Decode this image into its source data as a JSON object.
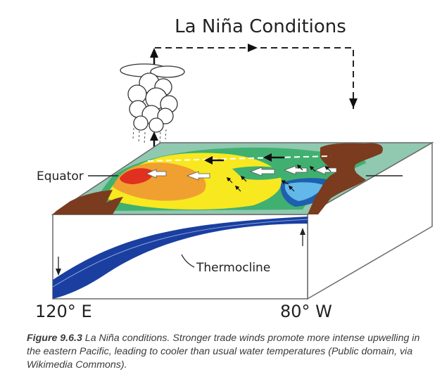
{
  "diagram": {
    "title": "La Niña Conditions",
    "labels": {
      "equator": "Equator",
      "thermocline": "Thermocline",
      "west_longitude": "120° E",
      "east_longitude": "80° W"
    }
  },
  "caption": {
    "figure_label": "Figure 9.6.3",
    "text": " La Niña conditions. Stronger trade winds promote more intense upwelling in the eastern Pacific, leading to cooler than usual water temperatures (Public domain, via Wikimedia Commons)."
  },
  "colors": {
    "warm_red": "#e03020",
    "warm_orange": "#f0a030",
    "warm_yellow": "#f8e820",
    "cool_green": "#40b070",
    "cool_teal": "#90c8b0",
    "cold_blue": "#1e5fb0",
    "land_brown": "#7a3b1e",
    "thermocline_layer": "#1a3fa0"
  }
}
